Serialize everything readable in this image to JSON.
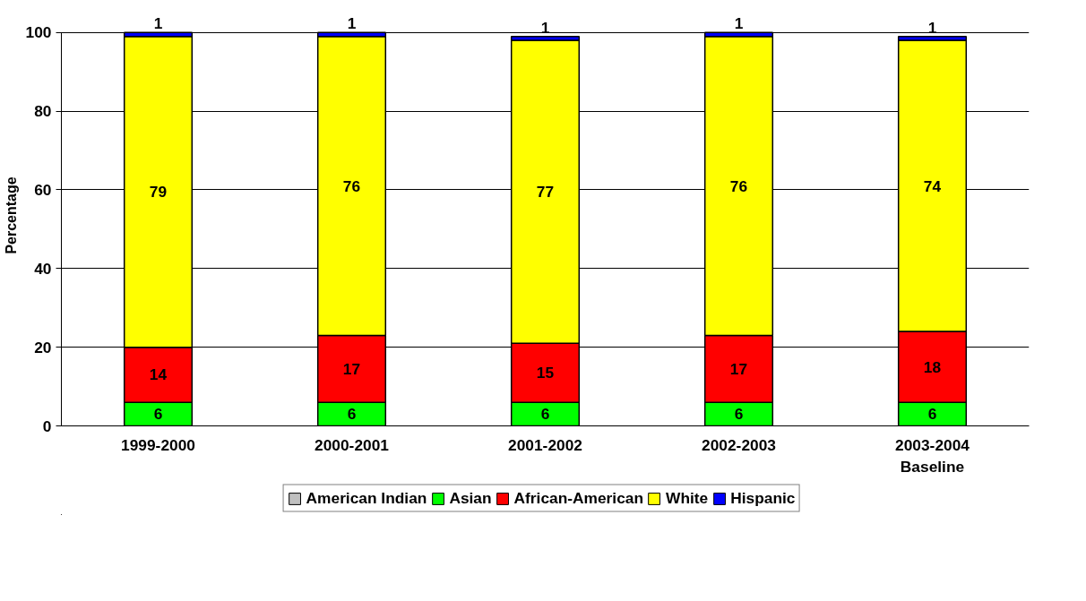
{
  "chart_data": {
    "type": "bar",
    "stacked": true,
    "ylabel": "Percentage",
    "categories": [
      "1999-2000",
      "2000-2001",
      "2001-2002",
      "2002-2003",
      "2003-2004\nBaseline"
    ],
    "series": [
      {
        "name": "American Indian",
        "color": "#c0c0c0",
        "values": [
          0,
          0,
          0,
          0,
          0
        ],
        "value_labels": [
          null,
          null,
          null,
          null,
          null
        ]
      },
      {
        "name": "Asian",
        "color": "#00ff00",
        "values": [
          6,
          6,
          6,
          6,
          6
        ],
        "value_labels": [
          "6",
          "6",
          "6",
          "6",
          "6"
        ]
      },
      {
        "name": "African-American",
        "color": "#ff0000",
        "values": [
          14,
          17,
          15,
          17,
          18
        ],
        "value_labels": [
          "14",
          "17",
          "15",
          "17",
          "18"
        ]
      },
      {
        "name": "White",
        "color": "#ffff00",
        "values": [
          79,
          76,
          77,
          76,
          74
        ],
        "value_labels": [
          "79",
          "76",
          "77",
          "76",
          "74"
        ]
      },
      {
        "name": "Hispanic",
        "color": "#0000ff",
        "values": [
          1,
          1,
          1,
          1,
          1
        ],
        "value_labels": [
          "1",
          "1",
          "1",
          "1",
          "1"
        ]
      }
    ],
    "ylim": [
      0,
      100
    ],
    "yticks": [
      0,
      20,
      40,
      60,
      80,
      100
    ],
    "grid": "y",
    "legend": "bottom"
  }
}
